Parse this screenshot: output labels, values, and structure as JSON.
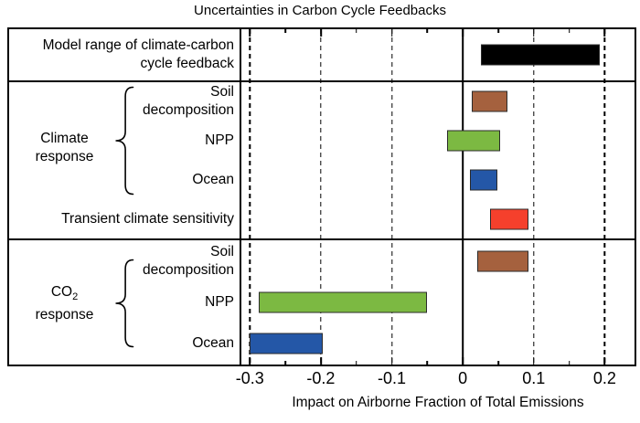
{
  "labels": {
    "model_range_line1": "Model range of climate-carbon",
    "model_range_line2": "cycle feedback",
    "climate_group_line1": "Climate",
    "climate_group_line2": "response",
    "co2_group_main": "CO",
    "co2_group_sub": "2",
    "co2_group_line2": "response",
    "soil_line1": "Soil",
    "soil_line2": "decomposition",
    "npp": "NPP",
    "ocean": "Ocean",
    "transient": "Transient climate sensitivity"
  },
  "chart_data": {
    "type": "bar",
    "orientation": "horizontal",
    "title": "Uncertainties in Carbon Cycle Feedbacks",
    "xlabel": "Impact on Airborne Fraction of Total Emissions",
    "xlim": [
      -0.312,
      0.242
    ],
    "x_major_ticks": [
      -0.3,
      -0.2,
      -0.1,
      0,
      0.1,
      0.2
    ],
    "x_tick_labels": [
      "-0.3",
      "-0.2",
      "-0.1",
      "0",
      "0.1",
      "0.2"
    ],
    "x_minor_ticks": [
      -0.25,
      -0.15,
      -0.05,
      0.05,
      0.15
    ],
    "grid_dashed": [
      -0.3,
      -0.2,
      -0.1,
      0.1,
      0.2
    ],
    "zero_line": 0,
    "grid_on": true,
    "legend": "none",
    "colors": {
      "model_range": "#000000",
      "soil_decomposition": "#A5613E",
      "npp": "#7CB942",
      "ocean": "#2457A7",
      "transient": "#F5402C",
      "bar_border": "#2b2b2b",
      "background": "#ffffff"
    },
    "bars": [
      {
        "group": "",
        "label": "Model range of climate-carbon cycle feedback",
        "from": 0.025,
        "to": 0.193,
        "color": "#000000"
      },
      {
        "group": "Climate response",
        "label": "Soil decomposition",
        "from": 0.013,
        "to": 0.063,
        "color": "#A5613E"
      },
      {
        "group": "Climate response",
        "label": "NPP",
        "from": -0.022,
        "to": 0.053,
        "color": "#7CB942"
      },
      {
        "group": "Climate response",
        "label": "Ocean",
        "from": 0.01,
        "to": 0.049,
        "color": "#2457A7"
      },
      {
        "group": "",
        "label": "Transient climate sensitivity",
        "from": 0.039,
        "to": 0.093,
        "color": "#F5402C"
      },
      {
        "group": "CO2 response",
        "label": "Soil decomposition",
        "from": 0.02,
        "to": 0.092,
        "color": "#A5613E"
      },
      {
        "group": "CO2 response",
        "label": "NPP",
        "from": -0.288,
        "to": -0.05,
        "color": "#7CB942"
      },
      {
        "group": "CO2 response",
        "label": "Ocean",
        "from": -0.3,
        "to": -0.197,
        "color": "#2457A7"
      }
    ]
  }
}
